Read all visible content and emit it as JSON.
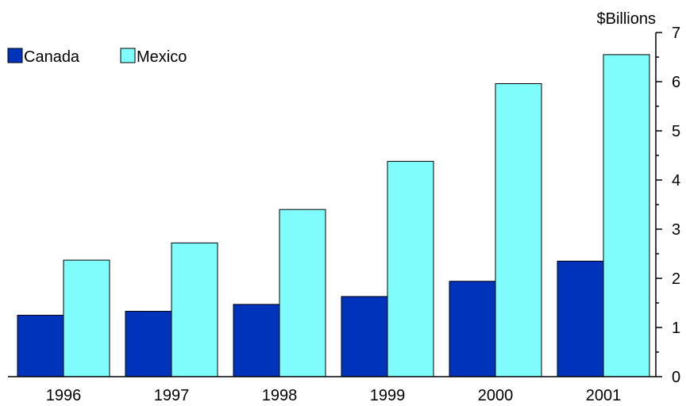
{
  "chart_data": {
    "type": "bar",
    "categories": [
      "1996",
      "1997",
      "1998",
      "1999",
      "2000",
      "2001"
    ],
    "series": [
      {
        "name": "Canada",
        "color": "#0033bb",
        "values": [
          1.25,
          1.33,
          1.47,
          1.63,
          1.94,
          2.35
        ]
      },
      {
        "name": "Mexico",
        "color": "#7ffcfc",
        "values": [
          2.37,
          2.72,
          3.4,
          4.38,
          5.96,
          6.55
        ]
      }
    ],
    "y_unit_label": "$Billions",
    "ylim": [
      0,
      7
    ],
    "yticks": [
      0,
      1,
      2,
      3,
      4,
      5,
      6,
      7
    ],
    "y_axis_side": "right",
    "legend_position": "top-left",
    "grid": false
  }
}
